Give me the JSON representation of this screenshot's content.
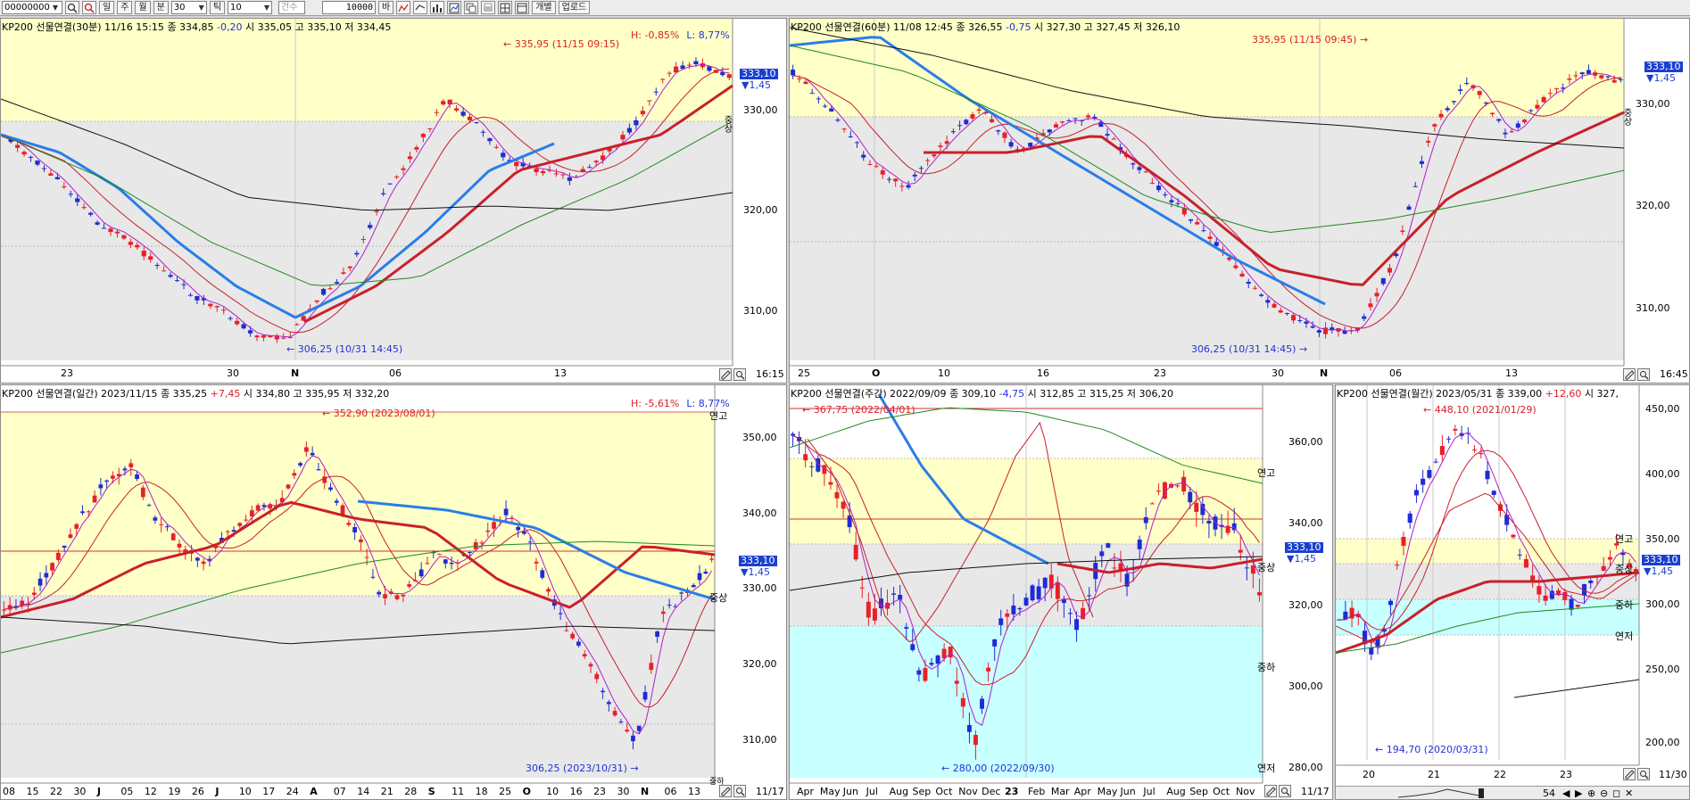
{
  "toolbar": {
    "code_value": "00000000",
    "period_buttons": [
      "일",
      "주",
      "월",
      "분"
    ],
    "interval_value": "30",
    "tick_label": "틱",
    "tick_value": "10",
    "count_placeholder": "건수",
    "count_value": "10000",
    "count_unit": "바",
    "individual_label": "개별",
    "upload_label": "업로드"
  },
  "panels": [
    {
      "id": "p30m",
      "title": "KP200 선물연결(30분)",
      "date": "11/16 15:15",
      "close_label": "종 334,85",
      "change": "-0,20",
      "ohl": "시 335,05 고 335,10 저 334,45",
      "hl_h": "H: -0,85%",
      "hl_l": "L: 8,77%",
      "max_marker": "335,95 (11/15 09:15)",
      "min_marker": "306,25 (10/31 14:45)",
      "price_box": "333,10",
      "price_change": "▼1,45",
      "y_ticks": [
        "330,00",
        "320,00",
        "310,00"
      ],
      "x_ticks": [
        "23",
        "30",
        "N",
        "06",
        "13"
      ],
      "zone_tags": [
        "중상"
      ],
      "time": "16:15"
    },
    {
      "id": "p60m",
      "title": "KP200 선물연결(60분)",
      "date": "11/08 12:45",
      "close_label": "종 326,55",
      "change": "-0,75",
      "ohl": "시 327,30 고 327,45 저 326,10",
      "max_marker": "335,95 (11/15 09:45)",
      "min_marker": "306,25 (10/31 14:45)",
      "price_box": "333,10",
      "price_change": "▼1,45",
      "y_ticks": [
        "330,00",
        "320,00",
        "310,00"
      ],
      "x_ticks": [
        "25",
        "O",
        "10",
        "16",
        "23",
        "30",
        "N",
        "06",
        "13"
      ],
      "zone_tags": [
        "중상"
      ],
      "time": "16:45"
    },
    {
      "id": "pday",
      "title": "KP200 선물연결(일간)",
      "date": "2023/11/15",
      "close_label": "종 335,25",
      "change": "+7,45",
      "ohl": "시 334,80 고 335,95 저 332,20",
      "hl_h": "H: -5,61%",
      "hl_l": "L: 8,77%",
      "max_marker": "352,90 (2023/08/01)",
      "min_marker": "306,25 (2023/10/31)",
      "price_box": "333,10",
      "price_change": "▼1,45",
      "y_ticks": [
        "350,00",
        "340,00",
        "330,00",
        "320,00",
        "310,00"
      ],
      "x_ticks": [
        "08",
        "15",
        "22",
        "30",
        "J",
        "05",
        "12",
        "19",
        "26",
        "J",
        "10",
        "17",
        "24",
        "A",
        "07",
        "14",
        "21",
        "28",
        "S",
        "11",
        "18",
        "25",
        "O",
        "10",
        "16",
        "23",
        "30",
        "N",
        "06",
        "13"
      ],
      "zone_tags": [
        "연고",
        "중상",
        "중하"
      ],
      "time": "11/17"
    },
    {
      "id": "pweek",
      "title": "KP200 선물연결(주간)",
      "date": "2022/09/09",
      "close_label": "종 309,10",
      "change": "-4,75",
      "ohl": "시 312,85 고 315,25 저 306,20",
      "max_marker": "367,75 (2022/04/01)",
      "min_marker": "280,00 (2022/09/30)",
      "price_box": "333,10",
      "price_change": "▼1,45",
      "y_ticks": [
        "360,00",
        "340,00",
        "320,00",
        "300,00",
        "280,00"
      ],
      "x_ticks": [
        "Apr",
        "May",
        "Jun",
        "Jul",
        "Aug",
        "Sep",
        "Oct",
        "Nov",
        "Dec",
        "23",
        "Feb",
        "Mar",
        "Apr",
        "May",
        "Jun",
        "Jul",
        "Aug",
        "Sep",
        "Oct",
        "Nov"
      ],
      "zone_tags": [
        "연고",
        "중상",
        "중하",
        "연저"
      ],
      "time": "11/17"
    },
    {
      "id": "pmonth",
      "title": "KP200 선물연결(월간)",
      "date": "2023/05/31",
      "close_label": "종 339,00",
      "change": "+12,60",
      "ohl": "시 327,",
      "max_marker": "448,10 (2021/01/29)",
      "min_marker": "194,70 (2020/03/31)",
      "price_box": "333,10",
      "price_change": "▼1,45",
      "y_ticks": [
        "450,00",
        "400,00",
        "350,00",
        "300,00",
        "250,00",
        "200,00"
      ],
      "x_ticks": [
        "20",
        "21",
        "22",
        "23"
      ],
      "zone_tags": [
        "연고",
        "중상",
        "중하",
        "연저"
      ],
      "time": "11/30",
      "page_number": "54"
    }
  ],
  "colors": {
    "up": "#e8202a",
    "down": "#1f2bd6",
    "ma_fast": "#b020c8",
    "ma_mid": "#c8202a",
    "ma_slow": "#2a7de8",
    "ma_long": "#1e8a1e",
    "zone_yellow": "#ffffc8",
    "zone_gray": "#e8e8e8",
    "zone_cyan": "#c8ffff"
  }
}
